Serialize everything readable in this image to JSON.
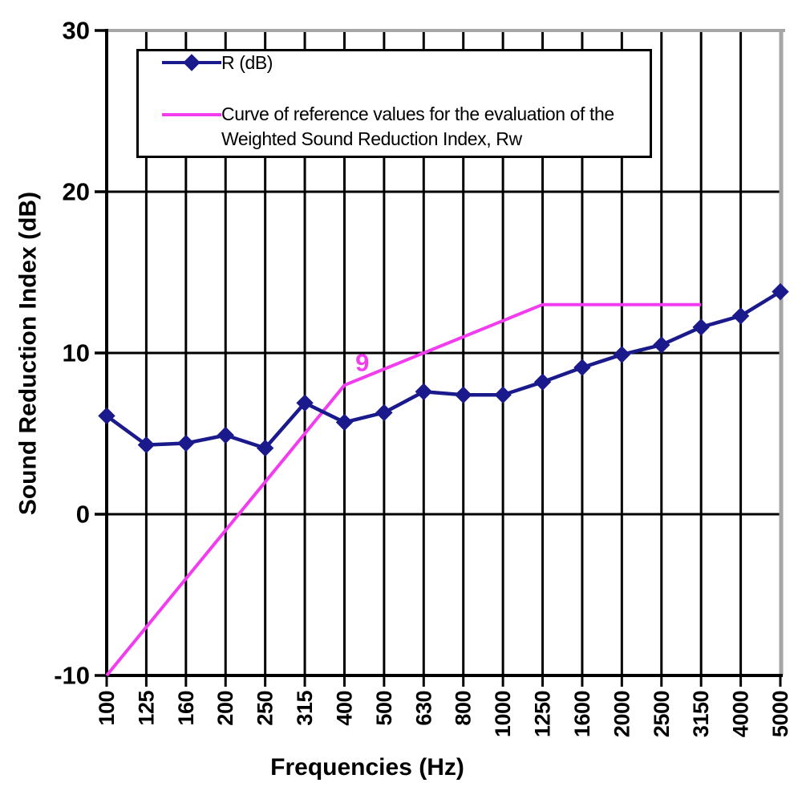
{
  "axes": {
    "y_title": "Sound Reduction Index (dB)",
    "x_title": "Frequencies (Hz)"
  },
  "legend": {
    "entries": [
      {
        "label": "R (dB)",
        "series": "r"
      },
      {
        "label_line1": "Curve of reference values for the evaluation of the",
        "label_line2": "Weighted Sound Reduction Index, Rw",
        "series": "reference"
      }
    ]
  },
  "colors": {
    "r_series": "#1A1A8C",
    "reference_curve": "#F23CF0",
    "grid": "#000000",
    "plot_border_grey": "#A6A6A6",
    "background": "#FFFFFF"
  },
  "chart_data": {
    "type": "line",
    "title": "",
    "xlabel": "Frequencies (Hz)",
    "ylabel": "Sound Reduction Index (dB)",
    "ylim": [
      -10,
      30
    ],
    "grid": true,
    "legend_position": "top-left-inside",
    "categories": [
      "100",
      "125",
      "160",
      "200",
      "250",
      "315",
      "400",
      "500",
      "630",
      "800",
      "1000",
      "1250",
      "1600",
      "2000",
      "2500",
      "3150",
      "4000",
      "5000"
    ],
    "y_ticks": [
      {
        "v": 30,
        "label": "30"
      },
      {
        "v": 20,
        "label": "20"
      },
      {
        "v": 10,
        "label": "10"
      },
      {
        "v": 0,
        "label": "0"
      },
      {
        "v": -10,
        "label": "-10"
      }
    ],
    "series": [
      {
        "name": "R (dB)",
        "color": "#1A1A8C",
        "marker": "diamond",
        "line_width": 4.5,
        "values": [
          6.1,
          4.3,
          4.4,
          4.9,
          4.1,
          6.9,
          5.7,
          6.3,
          7.6,
          7.4,
          7.4,
          8.2,
          9.1,
          9.9,
          10.5,
          11.6,
          12.3,
          13.8
        ]
      },
      {
        "name": "Curve of reference values for the evaluation of the Weighted Sound Reduction Index, Rw",
        "color": "#F23CF0",
        "marker": "none",
        "line_width": 4,
        "values": [
          -10,
          -7,
          -4,
          -1,
          2,
          5,
          8,
          9,
          10,
          11,
          12,
          13,
          13,
          13,
          13,
          13,
          null,
          null
        ]
      }
    ],
    "annotations": [
      {
        "text": "9",
        "band_index": 6.45,
        "db": 9.4,
        "color": "#F23CF0"
      }
    ]
  }
}
